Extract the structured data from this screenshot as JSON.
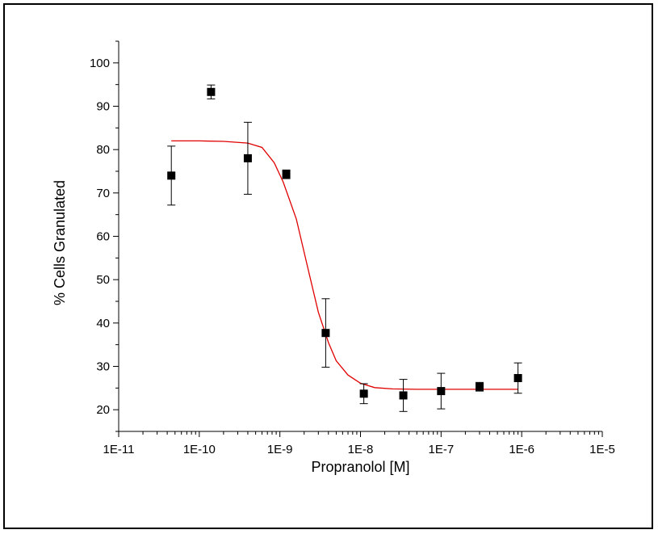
{
  "chart_data": {
    "type": "scatter",
    "title": "",
    "xlabel": "Propranolol [M]",
    "ylabel": "% Cells Granulated",
    "x_scale": "log",
    "xlim": [
      1e-11,
      1e-05
    ],
    "ylim": [
      15,
      105
    ],
    "x_tick_values": [
      1e-11,
      1e-10,
      1e-09,
      1e-08,
      1e-07,
      1e-06,
      1e-05
    ],
    "x_tick_labels": [
      "1E-11",
      "1E-10",
      "1E-9",
      "1E-8",
      "1E-7",
      "1E-6",
      "1E-5"
    ],
    "y_ticks": [
      20,
      30,
      40,
      50,
      60,
      70,
      80,
      90,
      100
    ],
    "grid": false,
    "legend": "none",
    "colors": {
      "points": "#000000",
      "fit_line": "#e00000"
    },
    "series": [
      {
        "type": "scatter",
        "x": [
          4.5e-11,
          1.4e-10,
          4e-10,
          1.2e-09,
          3.7e-09,
          1.1e-08,
          3.4e-08,
          1e-07,
          3e-07,
          9e-07
        ],
        "y": [
          74,
          93.3,
          78,
          74.3,
          37.7,
          23.7,
          23.3,
          24.3,
          25.3,
          27.3
        ],
        "error": [
          6.8,
          1.6,
          8.3,
          1.0,
          7.9,
          2.3,
          3.7,
          4.1,
          1.0,
          3.5
        ]
      },
      {
        "type": "line",
        "x": [
          4.5e-11,
          1e-10,
          2e-10,
          4e-10,
          6e-10,
          8.5e-10,
          1.1e-09,
          1.6e-09,
          2.2e-09,
          3e-09,
          4e-09,
          5e-09,
          7e-09,
          1e-08,
          1.5e-08,
          2.5e-08,
          5e-08,
          1e-07,
          3e-07,
          9e-07
        ],
        "y": [
          82,
          82,
          81.9,
          81.5,
          80.5,
          77,
          72.5,
          64,
          53,
          42.5,
          35.5,
          31.3,
          28,
          26.1,
          25.1,
          24.8,
          24.7,
          24.7,
          24.7,
          24.7
        ]
      }
    ]
  }
}
